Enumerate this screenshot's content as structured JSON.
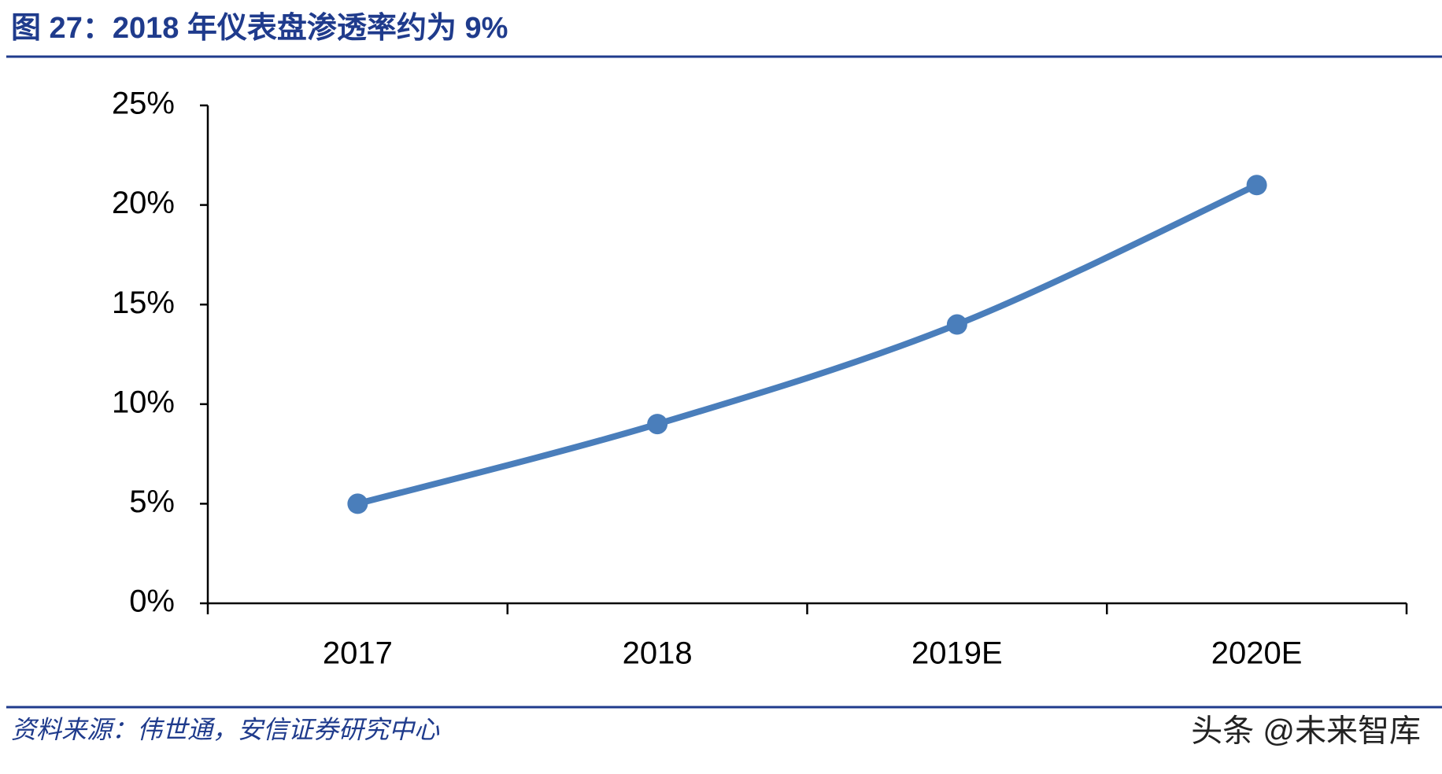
{
  "chart_data": {
    "type": "line",
    "title": "图 27：2018 年仪表盘渗透率约为 9%",
    "source": "资料来源：伟世通，安信证券研究中心",
    "watermark": "头条 @未来智库",
    "categories": [
      "2017",
      "2018",
      "2019E",
      "2020E"
    ],
    "series": [
      {
        "color": "#4a7ebb",
        "values": [
          5,
          9,
          14,
          21
        ]
      }
    ],
    "ylim": [
      0,
      25
    ],
    "yticks": [
      {
        "value": 0,
        "label": "0%"
      },
      {
        "value": 5,
        "label": "5%"
      },
      {
        "value": 10,
        "label": "10%"
      },
      {
        "value": 15,
        "label": "15%"
      },
      {
        "value": 20,
        "label": "20%"
      },
      {
        "value": 25,
        "label": "25%"
      }
    ],
    "grid": false
  }
}
